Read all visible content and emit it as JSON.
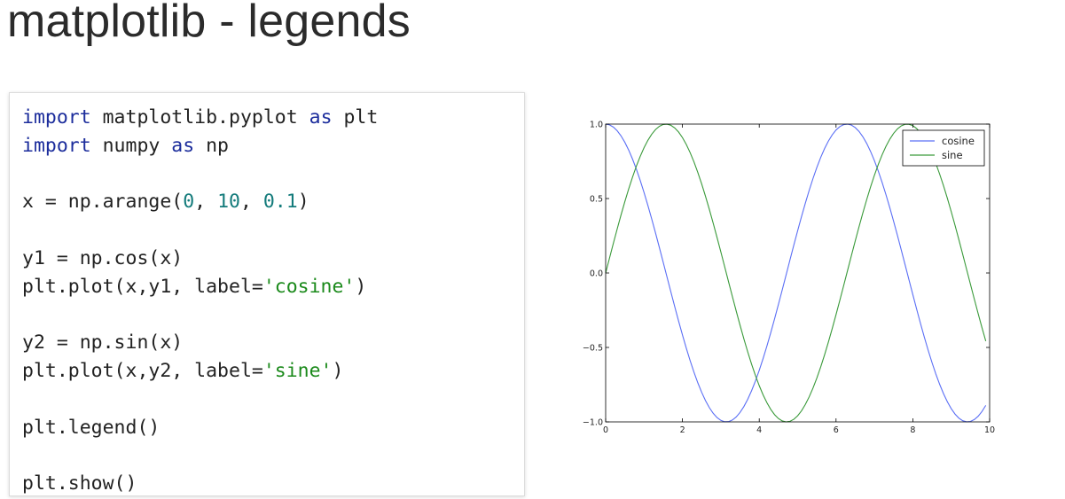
{
  "title": "matplotlib - legends",
  "code": {
    "lines": [
      [
        {
          "t": "import",
          "c": "kw"
        },
        {
          "t": " matplotlib.pyplot ",
          "c": ""
        },
        {
          "t": "as",
          "c": "kw"
        },
        {
          "t": " plt",
          "c": ""
        }
      ],
      [
        {
          "t": "import",
          "c": "kw"
        },
        {
          "t": " numpy ",
          "c": ""
        },
        {
          "t": "as",
          "c": "kw"
        },
        {
          "t": " np",
          "c": ""
        }
      ],
      [],
      [
        {
          "t": "x = np.arange(",
          "c": ""
        },
        {
          "t": "0",
          "c": "num"
        },
        {
          "t": ", ",
          "c": ""
        },
        {
          "t": "10",
          "c": "num"
        },
        {
          "t": ", ",
          "c": ""
        },
        {
          "t": "0.1",
          "c": "num"
        },
        {
          "t": ")",
          "c": ""
        }
      ],
      [],
      [
        {
          "t": "y1 = np.cos(x)",
          "c": ""
        }
      ],
      [
        {
          "t": "plt.plot(x,y1, label=",
          "c": ""
        },
        {
          "t": "'cosine'",
          "c": "str"
        },
        {
          "t": ")",
          "c": ""
        }
      ],
      [],
      [
        {
          "t": "y2 = np.sin(x)",
          "c": ""
        }
      ],
      [
        {
          "t": "plt.plot(x,y2, label=",
          "c": ""
        },
        {
          "t": "'sine'",
          "c": "str"
        },
        {
          "t": ")",
          "c": ""
        }
      ],
      [],
      [
        {
          "t": "plt.legend()",
          "c": ""
        }
      ],
      [],
      [
        {
          "t": "plt.show()",
          "c": ""
        }
      ]
    ]
  },
  "chart_data": {
    "type": "line",
    "title": "",
    "xlabel": "",
    "ylabel": "",
    "xlim": [
      0,
      10
    ],
    "ylim": [
      -1.0,
      1.0
    ],
    "xticks": [
      "0",
      "2",
      "4",
      "6",
      "8",
      "10"
    ],
    "yticks": [
      "1.0",
      "0.5",
      "0.0",
      "−0.5",
      "−1.0"
    ],
    "x": {
      "start": 0,
      "stop": 10,
      "step": 0.1
    },
    "grid": false,
    "legend": "top-right",
    "series": [
      {
        "name": "cosine",
        "function": "cos",
        "color": "#5b6ff5"
      },
      {
        "name": "sine",
        "function": "sin",
        "color": "#3a9a3a"
      }
    ]
  }
}
